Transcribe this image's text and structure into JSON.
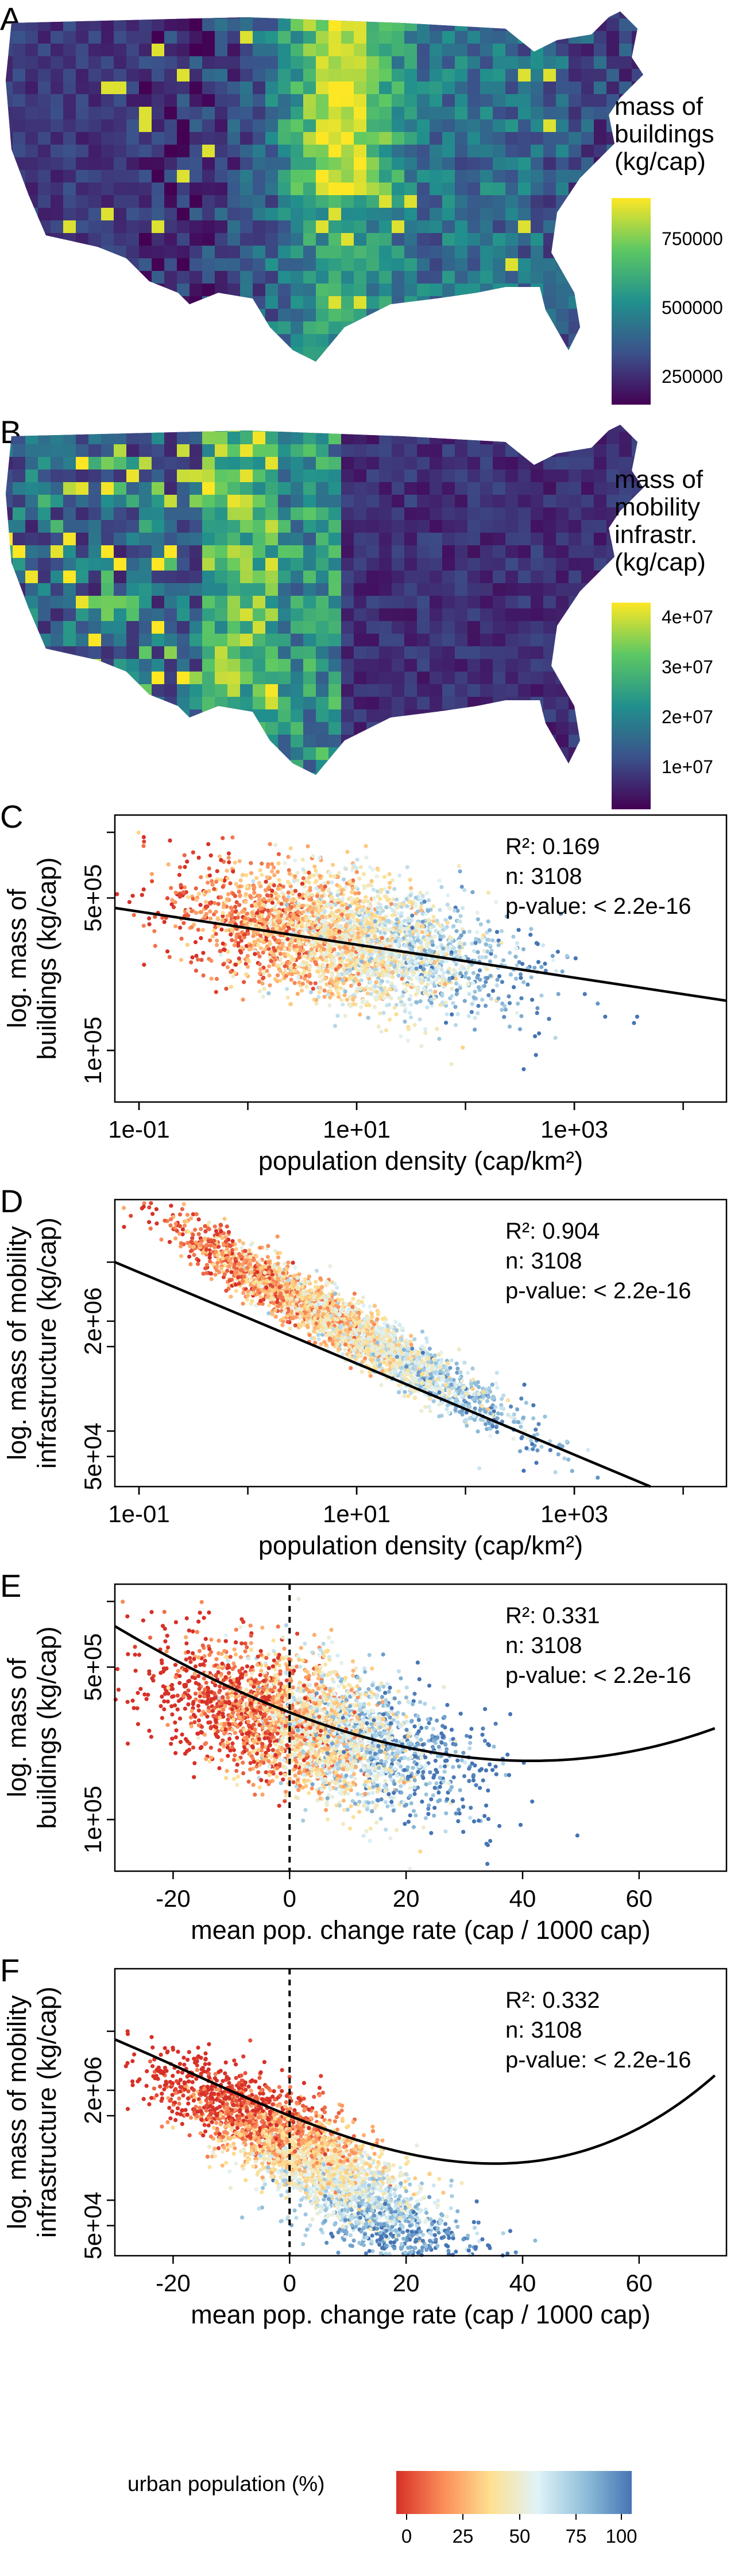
{
  "figure_text": {
    "panel_labels": [
      "A",
      "B",
      "C",
      "D",
      "E",
      "F"
    ]
  },
  "map_A": {
    "legend_title_lines": [
      "mass of",
      "buildings",
      "(kg/cap)"
    ],
    "legend_ticks": [
      "750000",
      "500000",
      "250000"
    ]
  },
  "map_B": {
    "legend_title_lines": [
      "mass of",
      "mobility",
      "infrastr.",
      "(kg/cap)"
    ],
    "legend_ticks": [
      "4e+07",
      "3e+07",
      "2e+07",
      "1e+07"
    ]
  },
  "colors": {
    "viridis": [
      "#440154",
      "#3b528b",
      "#21908d",
      "#5dc863",
      "#fde725"
    ],
    "urban": [
      "#d73027",
      "#fc8d59",
      "#fee090",
      "#e0f3f8",
      "#91bfdb",
      "#4575b4"
    ]
  },
  "colorbar": {
    "title": "urban population (%)",
    "ticks": [
      "0",
      "25",
      "50",
      "75",
      "100"
    ]
  },
  "chart_data": [
    {
      "panel": "C",
      "type": "scatter",
      "xlabel": "population density (cap/km²)",
      "ylabel_lines": [
        "log. mass of",
        "buildings (kg/cap)"
      ],
      "xscale": "log",
      "yscale": "log",
      "xlim": [
        0.06,
        25000
      ],
      "ylim": [
        58000,
        1200000
      ],
      "xticks": [
        0.1,
        10,
        1000
      ],
      "xtick_labels": [
        "1e-01",
        "1e+01",
        "1e+03"
      ],
      "yticks": [
        100000,
        500000
      ],
      "ytick_labels": [
        "1e+05",
        "5e+05"
      ],
      "stats": [
        "R²: 0.169",
        "n: 3108",
        "p-value: < 2.2e-16"
      ],
      "fit": {
        "kind": "line",
        "x": [
          0.06,
          25000
        ],
        "y": [
          450000,
          169000
        ]
      },
      "series": [
        {
          "n": 3108,
          "x_center_log10": 0.9,
          "x_spread_log10": 1.0,
          "y_center_log10": 5.45,
          "y_spread_log10": 0.15,
          "urban_pct_range": [
            0,
            100
          ]
        }
      ]
    },
    {
      "panel": "D",
      "type": "scatter",
      "xlabel": "population density (cap/km²)",
      "ylabel_lines": [
        "log. mass of mobility",
        "infrastructure (kg/cap)"
      ],
      "xscale": "log",
      "yscale": "log",
      "xlim": [
        0.06,
        25000
      ],
      "ylim": [
        22000,
        55000000
      ],
      "xticks": [
        0.1,
        10,
        1000
      ],
      "xtick_labels": [
        "1e-01",
        "1e+01",
        "1e+03"
      ],
      "yticks": [
        50000,
        2000000
      ],
      "ytick_labels": [
        "5e+04",
        "2e+06"
      ],
      "stats": [
        "R²: 0.904",
        "n: 3108",
        "p-value: < 2.2e-16"
      ],
      "fit": {
        "kind": "line",
        "x": [
          0.06,
          5000
        ],
        "y": [
          10000000,
          22000
        ]
      },
      "series": [
        {
          "n": 3108,
          "x_center_log10": 0.9,
          "x_spread_log10": 1.0,
          "urban_pct_range": [
            0,
            100
          ]
        }
      ]
    },
    {
      "panel": "E",
      "type": "scatter",
      "xlabel": "mean pop. change rate (cap / 1000 cap)",
      "ylabel_lines": [
        "log. mass of",
        "buildings (kg/cap)"
      ],
      "xscale": "linear",
      "yscale": "log",
      "xlim": [
        -30,
        75
      ],
      "ylim": [
        58000,
        1200000
      ],
      "xticks": [
        -20,
        0,
        20,
        40,
        60
      ],
      "xtick_labels": [
        "-20",
        "0",
        "20",
        "40",
        "60"
      ],
      "yticks": [
        100000,
        500000
      ],
      "ytick_labels": [
        "1e+05",
        "5e+05"
      ],
      "stats": [
        "R²: 0.331",
        "n: 3108",
        "p-value: < 2.2e-16"
      ],
      "vline_x": 0,
      "fit": {
        "kind": "quadratic",
        "x": [
          -30,
          0,
          40,
          73
        ],
        "y": [
          770000,
          310000,
          186000,
          262000
        ]
      },
      "series": [
        {
          "n": 3108,
          "x_center": 4,
          "x_spread": 12,
          "urban_pct_range": [
            0,
            100
          ]
        }
      ]
    },
    {
      "panel": "F",
      "type": "scatter",
      "xlabel": "mean pop. change rate (cap / 1000 cap)",
      "ylabel_lines": [
        "log. mass of mobility",
        "infrastructure (kg/cap)"
      ],
      "xscale": "linear",
      "yscale": "log",
      "xlim": [
        -30,
        75
      ],
      "ylim": [
        22000,
        55000000
      ],
      "xticks": [
        -20,
        0,
        20,
        40,
        60
      ],
      "xtick_labels": [
        "-20",
        "0",
        "20",
        "40",
        "60"
      ],
      "yticks": [
        50000,
        2000000
      ],
      "ytick_labels": [
        "5e+04",
        "2e+06"
      ],
      "stats": [
        "R²: 0.332",
        "n: 3108",
        "p-value: < 2.2e-16"
      ],
      "vline_x": 0,
      "fit": {
        "kind": "quadratic",
        "x": [
          -30,
          0,
          40,
          73
        ],
        "y": [
          8000000,
          1000000,
          280000,
          3000000
        ]
      },
      "series": [
        {
          "n": 3108,
          "x_center": 4,
          "x_spread": 12,
          "urban_pct_range": [
            0,
            100
          ]
        }
      ]
    }
  ]
}
